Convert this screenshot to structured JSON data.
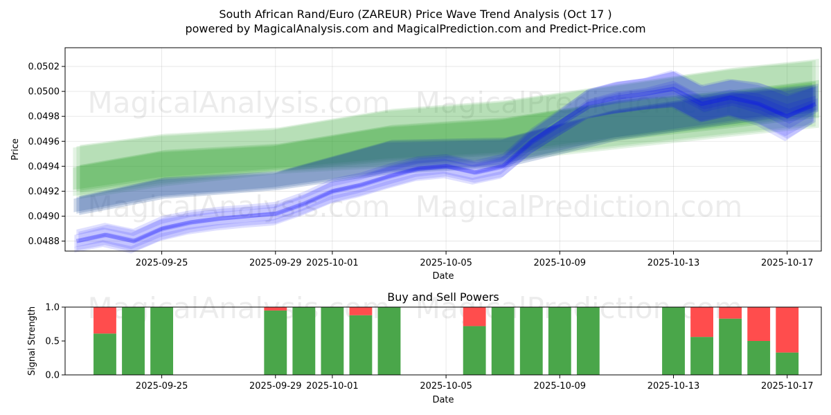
{
  "figure": {
    "title": "South African Rand/Euro (ZAREUR) Price Wave Trend Analysis (Oct 17 )",
    "subtitle": "powered by MagicalAnalysis.com and MagicalPrediction.com and Predict-Price.com",
    "watermarks": [
      "MagicalAnalysis.com",
      "MagicalPrediction.com"
    ]
  },
  "chart_data": [
    {
      "type": "area",
      "name": "price-wave",
      "xlabel": "Date",
      "ylabel": "Price",
      "xlim": [
        "2025-09-21.6",
        "2025-10-18.2"
      ],
      "ylim": [
        0.04872,
        0.05035
      ],
      "x_ticks": [
        "2025-09-25",
        "2025-09-29",
        "2025-10-01",
        "2025-10-05",
        "2025-10-09",
        "2025-10-13",
        "2025-10-17"
      ],
      "y_ticks": [
        "0.0488",
        "0.0490",
        "0.0492",
        "0.0494",
        "0.0496",
        "0.0498",
        "0.0500",
        "0.0502"
      ],
      "grid": true,
      "series": [
        {
          "name": "green-trend-outer",
          "color": "#2ca02c",
          "x": [
            "2025-09-22",
            "2025-09-25",
            "2025-09-29",
            "2025-10-03",
            "2025-10-07",
            "2025-10-11",
            "2025-10-15",
            "2025-10-18"
          ],
          "lower": [
            0.04915,
            0.04925,
            0.04935,
            0.0494,
            0.04945,
            0.04955,
            0.04965,
            0.04972
          ],
          "upper": [
            0.04956,
            0.04965,
            0.0497,
            0.04985,
            0.04992,
            0.05005,
            0.05018,
            0.05025
          ]
        },
        {
          "name": "green-trend-inner",
          "color": "#2ca02c",
          "x": [
            "2025-09-22",
            "2025-09-25",
            "2025-09-29",
            "2025-10-03",
            "2025-10-07",
            "2025-10-11",
            "2025-10-15",
            "2025-10-18"
          ],
          "lower": [
            0.0492,
            0.0493,
            0.04937,
            0.04945,
            0.0495,
            0.04962,
            0.04972,
            0.0498
          ],
          "upper": [
            0.0494,
            0.04952,
            0.04957,
            0.04972,
            0.04978,
            0.04992,
            0.05,
            0.05008
          ]
        },
        {
          "name": "blue-trend-band",
          "color": "#1f4e9a",
          "x": [
            "2025-09-22",
            "2025-09-25",
            "2025-09-29",
            "2025-10-03",
            "2025-10-07",
            "2025-10-11",
            "2025-10-15",
            "2025-10-18"
          ],
          "lower": [
            0.04902,
            0.04915,
            0.04922,
            0.04935,
            0.0494,
            0.04962,
            0.04975,
            0.04985
          ],
          "upper": [
            0.04915,
            0.0493,
            0.04935,
            0.0496,
            0.04962,
            0.04985,
            0.04998,
            0.05005
          ]
        },
        {
          "name": "blue-price-wave",
          "color": "#0000ff",
          "x": [
            "2025-09-22",
            "2025-09-23",
            "2025-09-24",
            "2025-09-25",
            "2025-09-26",
            "2025-09-27",
            "2025-09-28",
            "2025-09-29",
            "2025-09-30",
            "2025-10-01",
            "2025-10-02",
            "2025-10-03",
            "2025-10-04",
            "2025-10-05",
            "2025-10-06",
            "2025-10-07",
            "2025-10-08",
            "2025-10-09",
            "2025-10-10",
            "2025-10-11",
            "2025-10-12",
            "2025-10-13",
            "2025-10-14",
            "2025-10-15",
            "2025-10-16",
            "2025-10-17",
            "2025-10-18"
          ],
          "values": [
            0.0488,
            0.04885,
            0.0488,
            0.0489,
            0.04895,
            0.04898,
            0.049,
            0.04902,
            0.0491,
            0.0492,
            0.04925,
            0.04932,
            0.04938,
            0.0494,
            0.04935,
            0.0494,
            0.0496,
            0.04975,
            0.0499,
            0.04995,
            0.04998,
            0.05002,
            0.0499,
            0.04995,
            0.0499,
            0.0498,
            0.0499
          ],
          "spread": [
            0.0001,
            0.00012,
            0.00013,
            0.00014,
            0.00012,
            0.00011,
            0.0001,
            0.00011,
            0.00012,
            0.00014,
            0.00013,
            0.00014,
            0.00013,
            0.00012,
            0.00012,
            0.00013,
            0.00016,
            0.00018,
            0.00022,
            0.00025,
            0.00025,
            0.0003,
            0.0003,
            0.0003,
            0.00035,
            0.0004,
            0.0003
          ]
        }
      ]
    },
    {
      "type": "bar",
      "name": "buy-sell-powers",
      "title": "Buy and Sell Powers",
      "xlabel": "Date",
      "ylabel": "Signal Strength",
      "ylim": [
        0,
        1
      ],
      "y_ticks": [
        "0.0",
        "0.5",
        "1.0"
      ],
      "x_ticks": [
        "2025-09-25",
        "2025-09-29",
        "2025-10-01",
        "2025-10-05",
        "2025-10-09",
        "2025-10-13",
        "2025-10-17"
      ],
      "buy_color": "#4aa64a",
      "sell_color": "#ff4d4d",
      "categories": [
        "2025-09-23",
        "2025-09-24",
        "2025-09-25",
        "2025-09-29",
        "2025-09-30",
        "2025-10-01",
        "2025-10-02",
        "2025-10-03",
        "2025-10-06",
        "2025-10-07",
        "2025-10-08",
        "2025-10-09",
        "2025-10-10",
        "2025-10-13",
        "2025-10-14",
        "2025-10-15",
        "2025-10-16",
        "2025-10-17"
      ],
      "series": [
        {
          "name": "Buy",
          "values": [
            0.61,
            1.0,
            1.0,
            0.95,
            1.0,
            1.0,
            0.88,
            1.0,
            0.72,
            1.0,
            1.0,
            1.0,
            1.0,
            1.0,
            0.56,
            0.83,
            0.5,
            0.33
          ]
        },
        {
          "name": "Sell",
          "values": [
            0.39,
            0.0,
            0.0,
            0.05,
            0.0,
            0.0,
            0.12,
            0.0,
            0.28,
            0.0,
            0.0,
            0.0,
            0.0,
            0.0,
            0.44,
            0.17,
            0.5,
            0.67
          ]
        }
      ]
    }
  ]
}
